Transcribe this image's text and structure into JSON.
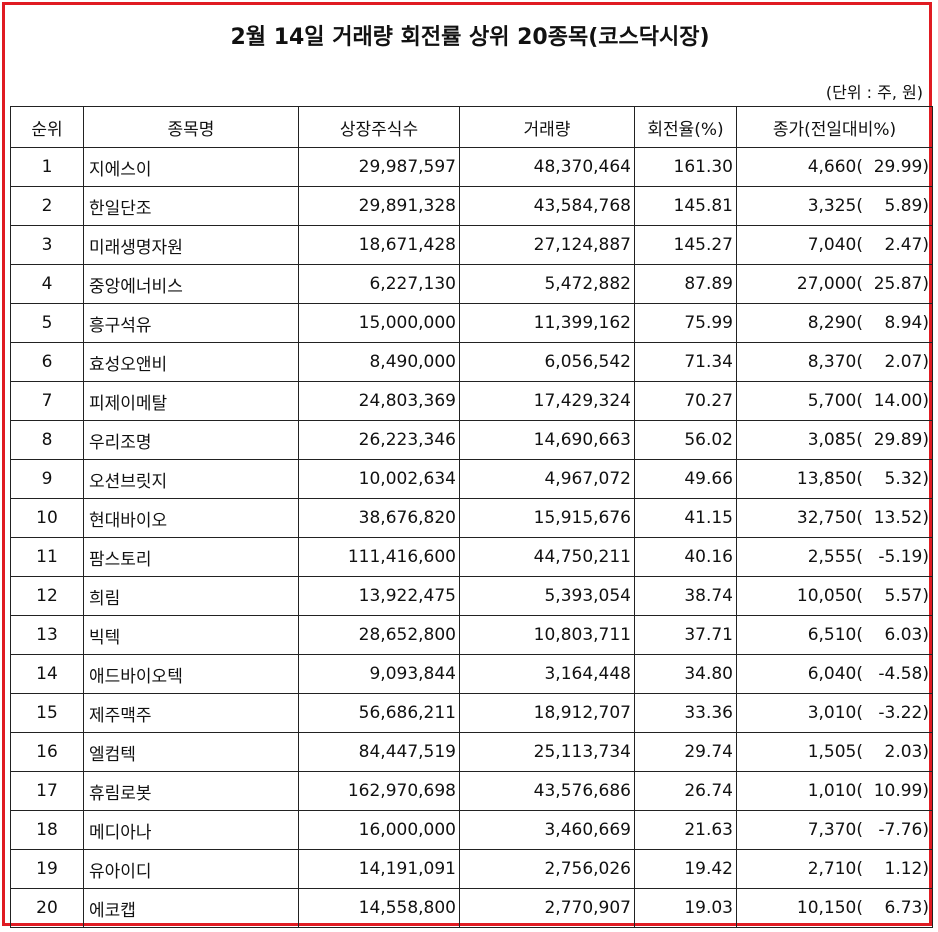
{
  "title": "2월 14일 거래량 회전률 상위 20종목(코스닥시장)",
  "unit_note": "(단위 : 주, 원)",
  "headers": {
    "rank": "순위",
    "name": "종목명",
    "listed_shares": "상장주식수",
    "volume": "거래량",
    "turnover": "회전율(%)",
    "close": "종가(전일대비%)"
  },
  "rows": [
    {
      "rank": "1",
      "name": "지에스이",
      "listed_shares": "29,987,597",
      "volume": "48,370,464",
      "turnover": "161.30",
      "close": "4,660(",
      "change": "29.99)"
    },
    {
      "rank": "2",
      "name": "한일단조",
      "listed_shares": "29,891,328",
      "volume": "43,584,768",
      "turnover": "145.81",
      "close": "3,325(",
      "change": "5.89)"
    },
    {
      "rank": "3",
      "name": "미래생명자원",
      "listed_shares": "18,671,428",
      "volume": "27,124,887",
      "turnover": "145.27",
      "close": "7,040(",
      "change": "2.47)"
    },
    {
      "rank": "4",
      "name": "중앙에너비스",
      "listed_shares": "6,227,130",
      "volume": "5,472,882",
      "turnover": "87.89",
      "close": "27,000(",
      "change": "25.87)"
    },
    {
      "rank": "5",
      "name": "흥구석유",
      "listed_shares": "15,000,000",
      "volume": "11,399,162",
      "turnover": "75.99",
      "close": "8,290(",
      "change": "8.94)"
    },
    {
      "rank": "6",
      "name": "효성오앤비",
      "listed_shares": "8,490,000",
      "volume": "6,056,542",
      "turnover": "71.34",
      "close": "8,370(",
      "change": "2.07)"
    },
    {
      "rank": "7",
      "name": "피제이메탈",
      "listed_shares": "24,803,369",
      "volume": "17,429,324",
      "turnover": "70.27",
      "close": "5,700(",
      "change": "14.00)"
    },
    {
      "rank": "8",
      "name": "우리조명",
      "listed_shares": "26,223,346",
      "volume": "14,690,663",
      "turnover": "56.02",
      "close": "3,085(",
      "change": "29.89)"
    },
    {
      "rank": "9",
      "name": "오션브릿지",
      "listed_shares": "10,002,634",
      "volume": "4,967,072",
      "turnover": "49.66",
      "close": "13,850(",
      "change": "5.32)"
    },
    {
      "rank": "10",
      "name": "현대바이오",
      "listed_shares": "38,676,820",
      "volume": "15,915,676",
      "turnover": "41.15",
      "close": "32,750(",
      "change": "13.52)"
    },
    {
      "rank": "11",
      "name": "팜스토리",
      "listed_shares": "111,416,600",
      "volume": "44,750,211",
      "turnover": "40.16",
      "close": "2,555(",
      "change": "-5.19)"
    },
    {
      "rank": "12",
      "name": "희림",
      "listed_shares": "13,922,475",
      "volume": "5,393,054",
      "turnover": "38.74",
      "close": "10,050(",
      "change": "5.57)"
    },
    {
      "rank": "13",
      "name": "빅텍",
      "listed_shares": "28,652,800",
      "volume": "10,803,711",
      "turnover": "37.71",
      "close": "6,510(",
      "change": "6.03)"
    },
    {
      "rank": "14",
      "name": "애드바이오텍",
      "listed_shares": "9,093,844",
      "volume": "3,164,448",
      "turnover": "34.80",
      "close": "6,040(",
      "change": "-4.58)"
    },
    {
      "rank": "15",
      "name": "제주맥주",
      "listed_shares": "56,686,211",
      "volume": "18,912,707",
      "turnover": "33.36",
      "close": "3,010(",
      "change": "-3.22)"
    },
    {
      "rank": "16",
      "name": "엘컴텍",
      "listed_shares": "84,447,519",
      "volume": "25,113,734",
      "turnover": "29.74",
      "close": "1,505(",
      "change": "2.03)"
    },
    {
      "rank": "17",
      "name": "휴림로봇",
      "listed_shares": "162,970,698",
      "volume": "43,576,686",
      "turnover": "26.74",
      "close": "1,010(",
      "change": "10.99)"
    },
    {
      "rank": "18",
      "name": "메디아나",
      "listed_shares": "16,000,000",
      "volume": "3,460,669",
      "turnover": "21.63",
      "close": "7,370(",
      "change": "-7.76)"
    },
    {
      "rank": "19",
      "name": "유아이디",
      "listed_shares": "14,191,091",
      "volume": "2,756,026",
      "turnover": "19.42",
      "close": "2,710(",
      "change": "1.12)"
    },
    {
      "rank": "20",
      "name": "에코캡",
      "listed_shares": "14,558,800",
      "volume": "2,770,907",
      "turnover": "19.03",
      "close": "10,150(",
      "change": "6.73)"
    }
  ],
  "colors": {
    "frame_border": "#e01b22"
  }
}
